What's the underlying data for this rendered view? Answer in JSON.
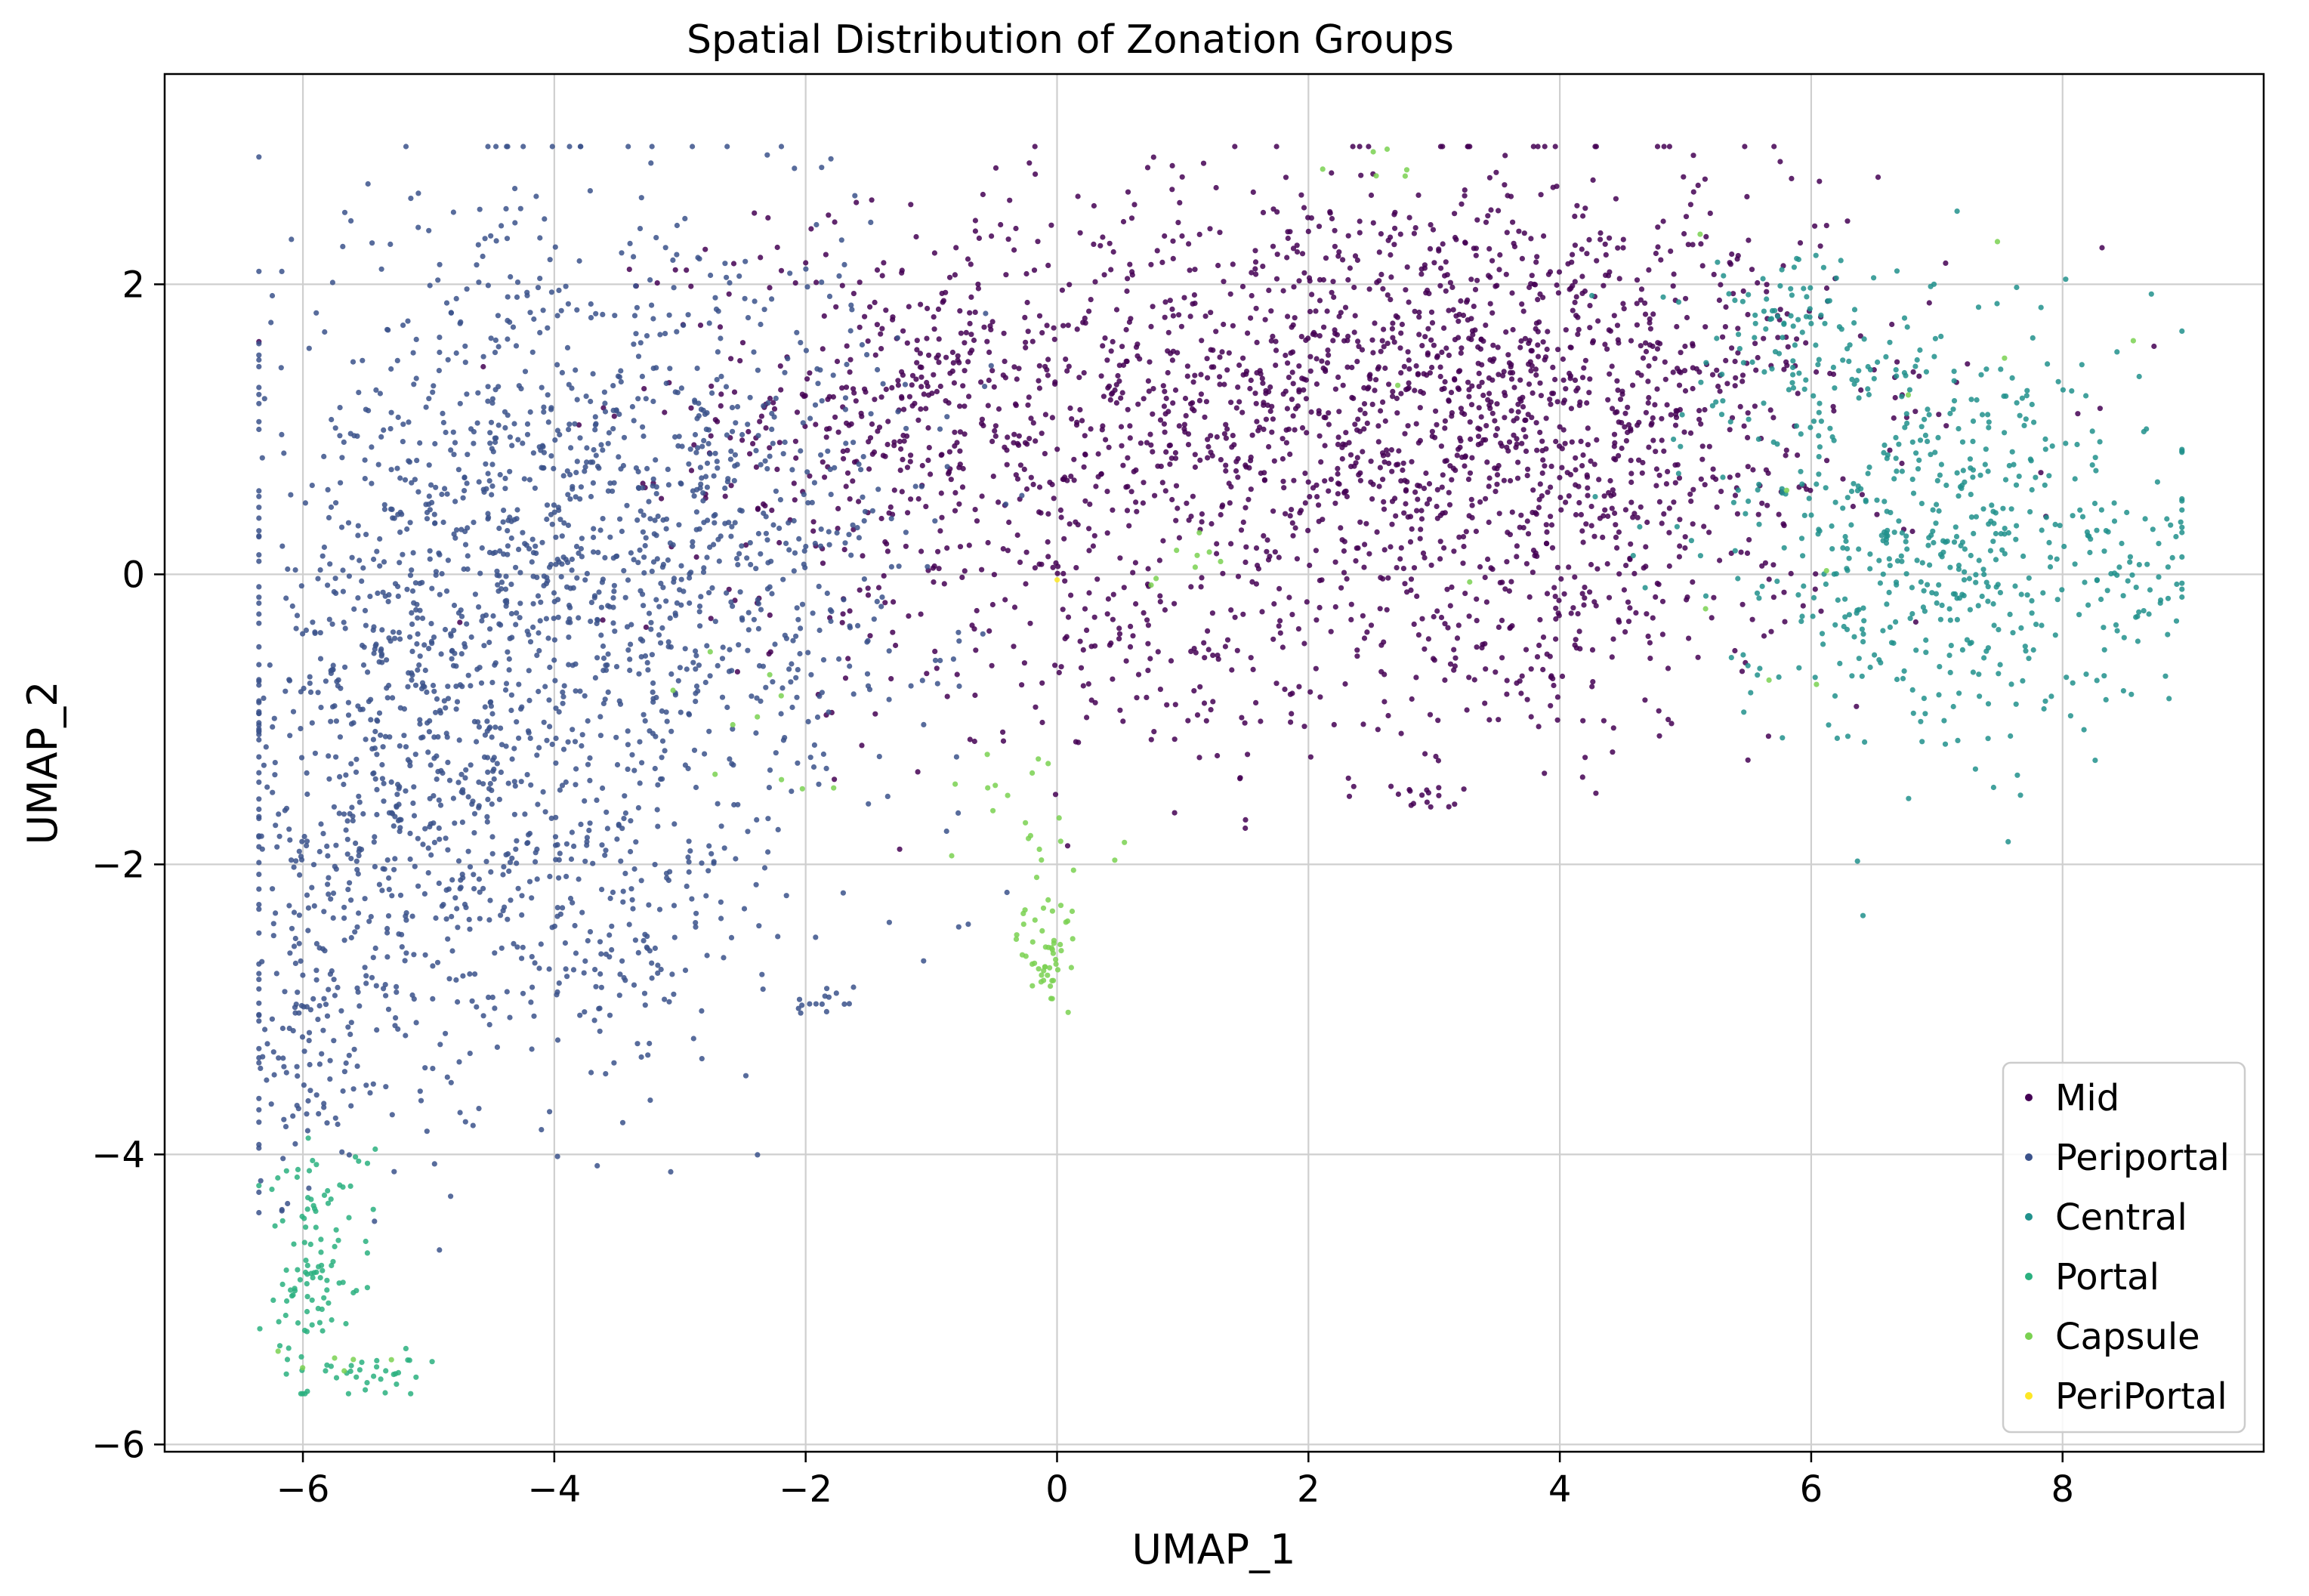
{
  "chart_data": {
    "type": "scatter",
    "title": "Spatial Distribution of Zonation Groups",
    "xlabel": "UMAP_1",
    "ylabel": "UMAP_2",
    "xlim": [
      -7.1,
      9.6
    ],
    "ylim": [
      -6.05,
      3.45
    ],
    "x_ticks": [
      -6,
      -4,
      -2,
      0,
      2,
      4,
      6,
      8
    ],
    "y_ticks": [
      -6,
      -4,
      -2,
      0,
      2
    ],
    "x_tick_labels": [
      "−6",
      "−4",
      "−2",
      "0",
      "2",
      "4",
      "6",
      "8"
    ],
    "y_tick_labels": [
      "−6",
      "−4",
      "−2",
      "0",
      "2"
    ],
    "grid": true,
    "legend_position": "lower-right",
    "series": [
      {
        "name": "Mid",
        "color": "#440154",
        "clusters": [
          {
            "cx": 2.0,
            "cy": 1.25,
            "sx": 2.1,
            "sy": 0.75,
            "n": 1500
          },
          {
            "cx": 4.2,
            "cy": 1.1,
            "sx": 1.0,
            "sy": 0.9,
            "n": 500
          },
          {
            "cx": -1.2,
            "cy": 0.9,
            "sx": 0.9,
            "sy": 0.7,
            "n": 250
          },
          {
            "cx": 0.9,
            "cy": -0.6,
            "sx": 1.3,
            "sy": 0.5,
            "n": 180
          },
          {
            "cx": 3.8,
            "cy": -0.4,
            "sx": 1.0,
            "sy": 0.4,
            "n": 140
          },
          {
            "cx": 2.9,
            "cy": -1.55,
            "sx": 0.12,
            "sy": 0.05,
            "n": 15
          }
        ]
      },
      {
        "name": "Periportal",
        "color": "#3b528b",
        "clusters": [
          {
            "cx": -4.2,
            "cy": 0.1,
            "sx": 1.1,
            "sy": 1.2,
            "n": 1100
          },
          {
            "cx": -5.3,
            "cy": -1.8,
            "sx": 0.65,
            "sy": 1.0,
            "n": 500
          },
          {
            "cx": -2.5,
            "cy": 0.3,
            "sx": 0.9,
            "sy": 1.0,
            "n": 400
          },
          {
            "cx": -3.6,
            "cy": -2.4,
            "sx": 0.6,
            "sy": 0.6,
            "n": 170
          },
          {
            "cx": -6.0,
            "cy": -3.2,
            "sx": 0.22,
            "sy": 0.6,
            "n": 90
          },
          {
            "cx": -1.8,
            "cy": -2.95,
            "sx": 0.2,
            "sy": 0.07,
            "n": 15
          }
        ]
      },
      {
        "name": "Central",
        "color": "#21918c",
        "clusters": [
          {
            "cx": 7.0,
            "cy": 0.3,
            "sx": 0.85,
            "sy": 0.75,
            "n": 550
          },
          {
            "cx": 5.9,
            "cy": 1.6,
            "sx": 0.45,
            "sy": 0.4,
            "n": 100
          },
          {
            "cx": 8.6,
            "cy": 0.0,
            "sx": 0.25,
            "sy": 0.25,
            "n": 40
          }
        ]
      },
      {
        "name": "Portal",
        "color": "#2ab07f",
        "clusters": [
          {
            "cx": -5.9,
            "cy": -4.75,
            "sx": 0.22,
            "sy": 0.45,
            "n": 110
          },
          {
            "cx": -5.4,
            "cy": -5.5,
            "sx": 0.25,
            "sy": 0.08,
            "n": 25
          }
        ]
      },
      {
        "name": "Capsule",
        "color": "#7ad151",
        "clusters": [
          {
            "cx": -0.05,
            "cy": -2.65,
            "sx": 0.12,
            "sy": 0.2,
            "n": 45
          },
          {
            "cx": -0.1,
            "cy": -1.85,
            "sx": 0.35,
            "sy": 0.35,
            "n": 25
          },
          {
            "cx": 1.0,
            "cy": 0.1,
            "sx": 0.3,
            "sy": 0.1,
            "n": 8
          },
          {
            "cx": 2.5,
            "cy": 2.8,
            "sx": 0.2,
            "sy": 0.1,
            "n": 6
          },
          {
            "cx": -2.4,
            "cy": -1.0,
            "sx": 0.4,
            "sy": 0.4,
            "n": 10
          },
          {
            "cx": 5.5,
            "cy": 0.5,
            "sx": 1.5,
            "sy": 1.0,
            "n": 12
          },
          {
            "cx": -5.6,
            "cy": -5.45,
            "sx": 0.3,
            "sy": 0.08,
            "n": 6
          }
        ]
      },
      {
        "name": "PeriPortal",
        "color": "#fde725",
        "clusters": [
          {
            "cx": 0.0,
            "cy": 0.0,
            "sx": 0.02,
            "sy": 0.02,
            "n": 1
          }
        ]
      }
    ]
  }
}
